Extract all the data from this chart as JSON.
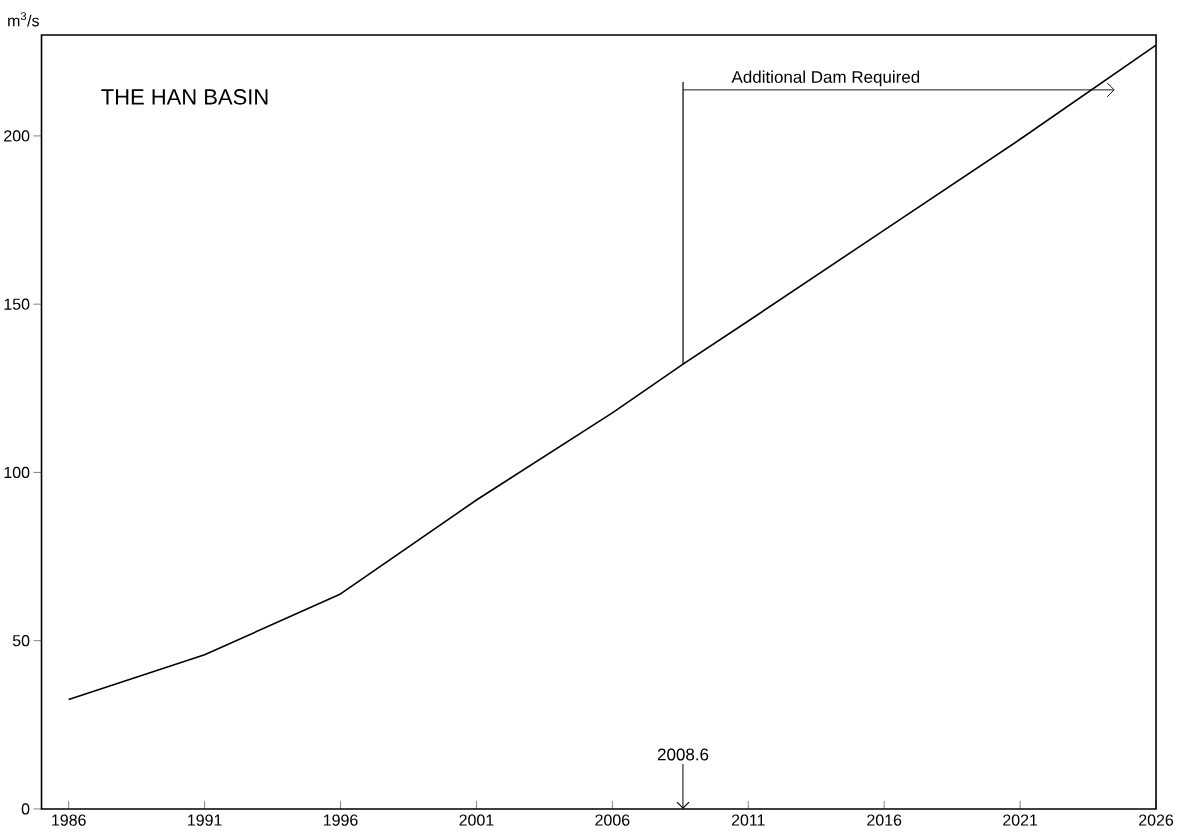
{
  "chart_data": {
    "type": "line",
    "title": "THE HAN BASIN",
    "ylabel": "m$^{3}$/s",
    "x": [
      1986,
      1991,
      1996,
      2001,
      2006,
      2008.6,
      2011,
      2016,
      2021,
      2026
    ],
    "series": [
      {
        "color": "#000000",
        "values": [
          32.5,
          45.8,
          63.9,
          91.8,
          117.7,
          132.2,
          145,
          172,
          199,
          227
        ]
      }
    ],
    "xlim": [
      1985,
      2026
    ],
    "ylim": [
      0,
      230
    ],
    "xticks": [
      1986,
      1991,
      1996,
      2001,
      2006,
      2011,
      2016,
      2021,
      2026
    ],
    "yticks": [
      0,
      50,
      100,
      150,
      200
    ],
    "grid": false,
    "marker": "none",
    "line_style": "solid",
    "annotations": [
      "Additional Dam Required"
    ],
    "ref_lines": [
      {
        "axis": "x",
        "value": 2008.6,
        "label": "2008.6",
        "color": "#000000"
      }
    ]
  }
}
